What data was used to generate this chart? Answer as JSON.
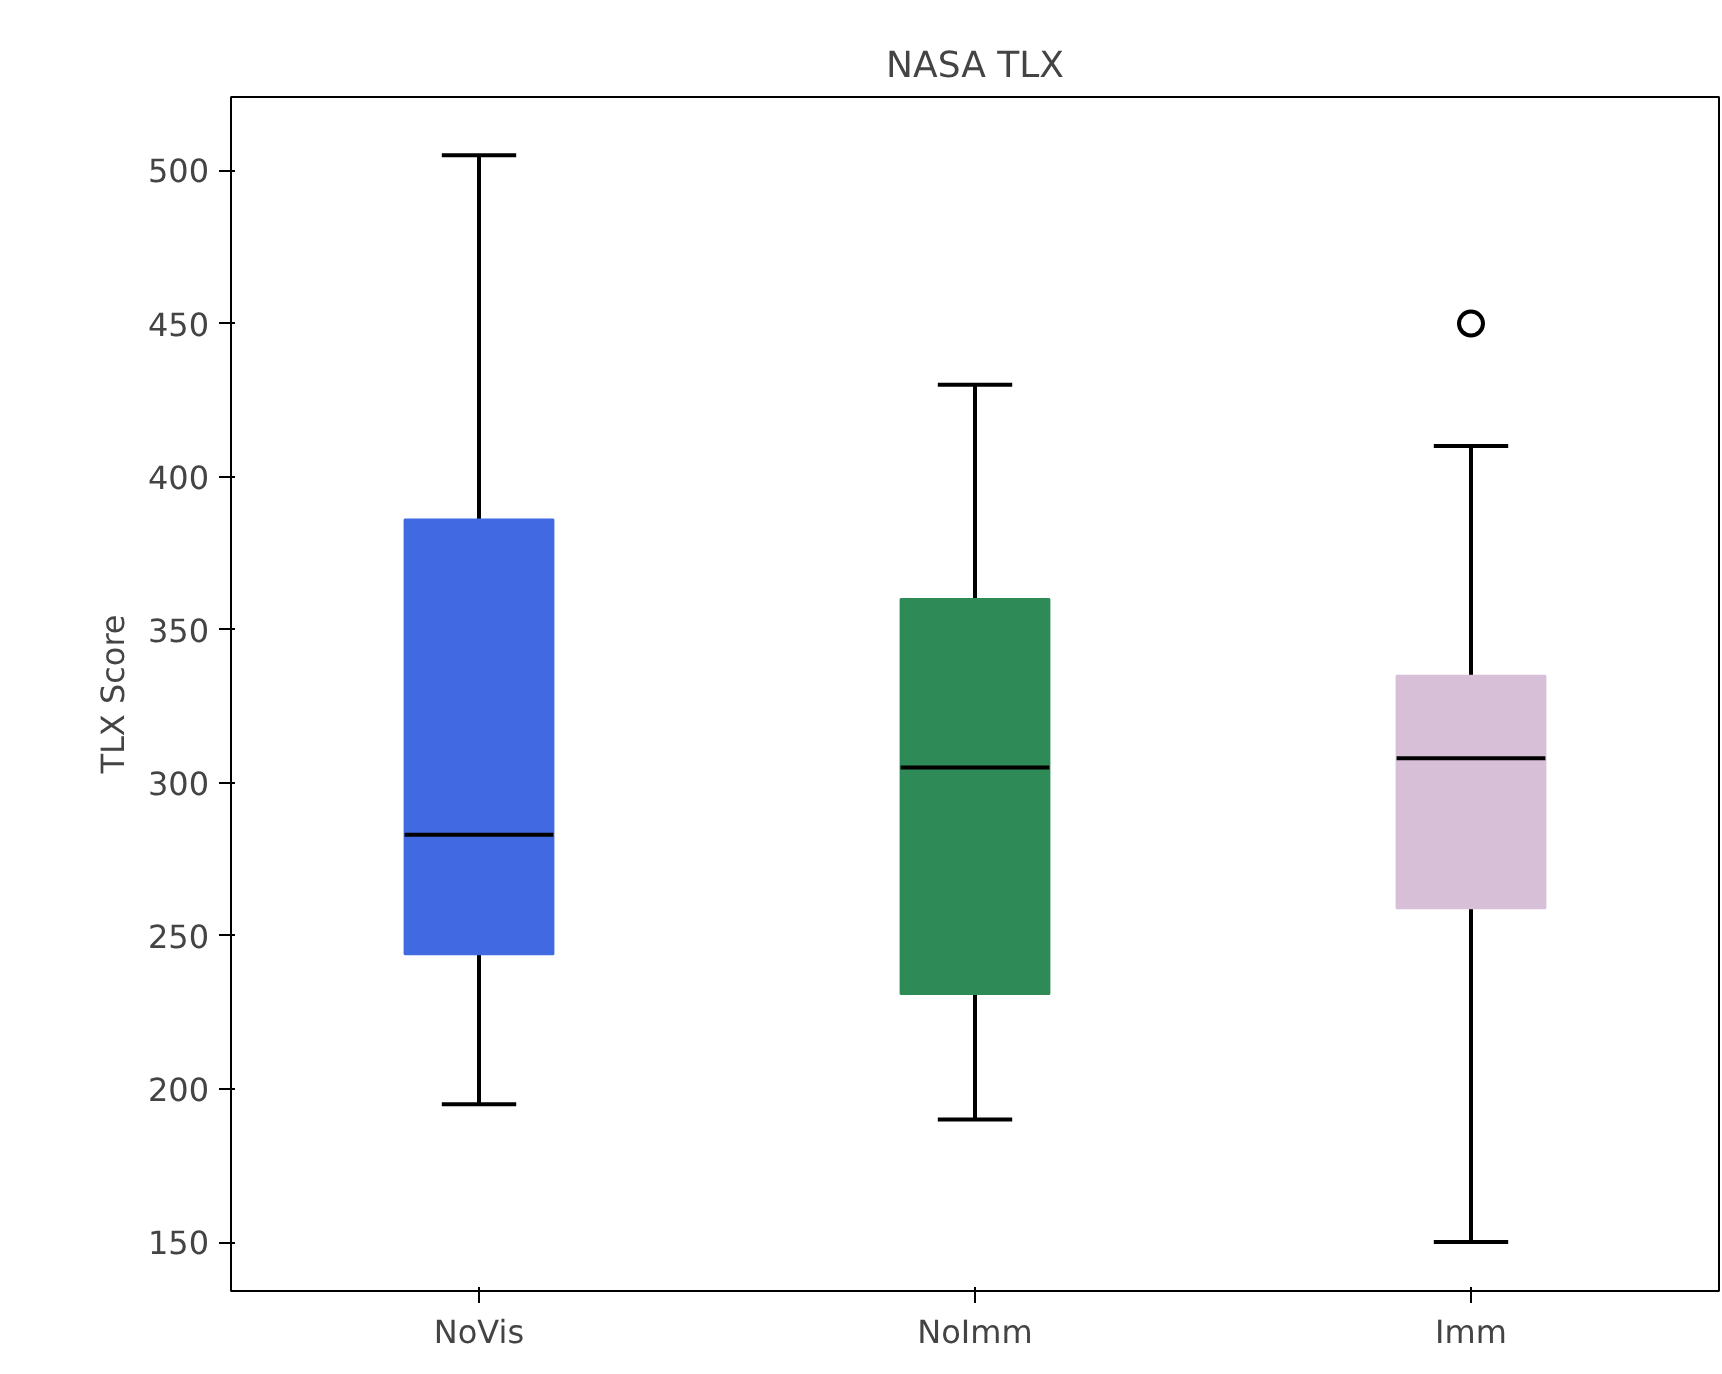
{
  "chart_data": {
    "type": "box",
    "title": "NASA TLX",
    "ylabel": "TLX Score",
    "categories": [
      "NoVis",
      "NoImm",
      "Imm"
    ],
    "boxes": [
      {
        "low": 195,
        "q1": 244,
        "median": 283,
        "q3": 386,
        "high": 505
      },
      {
        "low": 190,
        "q1": 231,
        "median": 305,
        "q3": 360,
        "high": 430
      },
      {
        "low": 150,
        "q1": 259,
        "median": 308,
        "q3": 335,
        "high": 410,
        "outliers": [
          450
        ]
      }
    ],
    "colors": [
      "#4169e1",
      "#2e8b57",
      "#d8bfd8"
    ],
    "ylim": [
      134,
      524
    ],
    "yticks": [
      150,
      200,
      250,
      300,
      350,
      400,
      450,
      500
    ],
    "grid": false
  }
}
